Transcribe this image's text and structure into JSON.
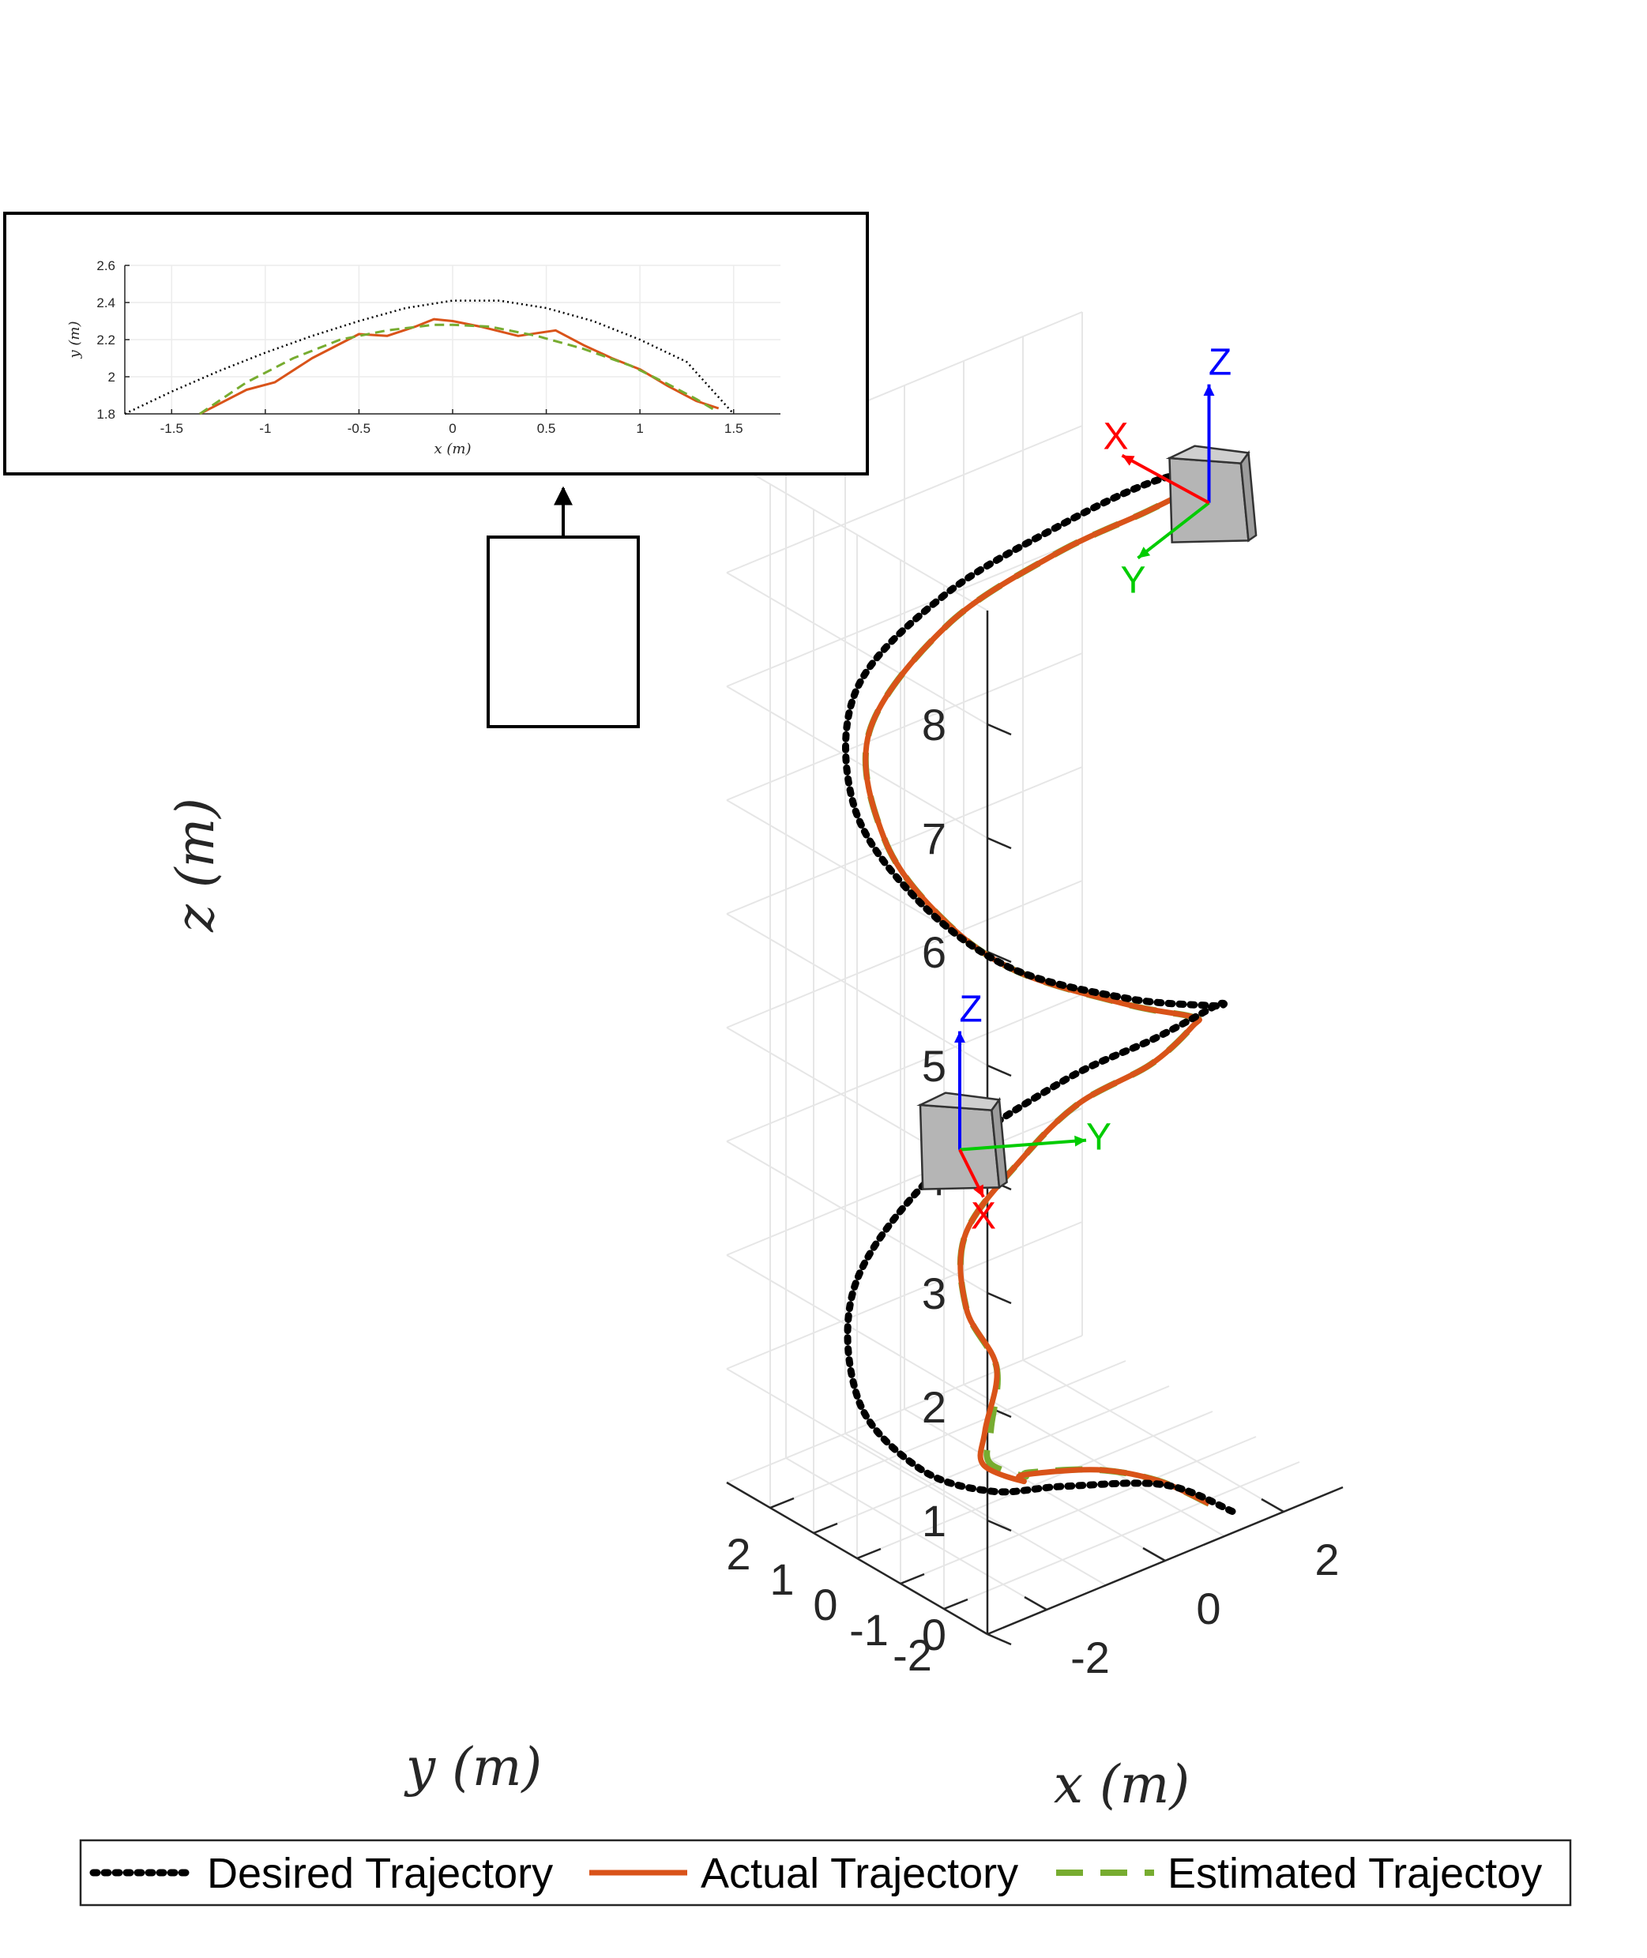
{
  "chart_data": [
    {
      "type": "line",
      "projection": "3d",
      "title": "",
      "xlabel": "x (m)",
      "ylabel": "y (m)",
      "zlabel": "z (m)",
      "xlim": [
        -3,
        3
      ],
      "ylim": [
        -3,
        3
      ],
      "zlim": [
        0,
        9
      ],
      "x_ticks": [
        "-2",
        "0",
        "2"
      ],
      "y_ticks": [
        "-2",
        "-1",
        "0",
        "1",
        "2"
      ],
      "z_ticks": [
        "0",
        "1",
        "2",
        "3",
        "4",
        "5",
        "6",
        "7",
        "8"
      ],
      "grid": true,
      "legend_position": "bottom",
      "series": [
        {
          "name": "Desired Trajectory",
          "style": "dotted",
          "color": "#000000",
          "points": [
            [
              1.5,
              -2.5,
              0.0
            ],
            [
              0.8,
              -1.9,
              0.25
            ],
            [
              -0.6,
              -1.5,
              0.45
            ],
            [
              -1.7,
              -1.3,
              0.6
            ],
            [
              -2.4,
              -0.6,
              0.8
            ],
            [
              -2.4,
              0.8,
              1.1
            ],
            [
              -1.4,
              2.2,
              1.6
            ],
            [
              0.3,
              2.5,
              2.2
            ],
            [
              1.7,
              1.7,
              2.8
            ],
            [
              2.4,
              0.5,
              3.3
            ],
            [
              2.4,
              -0.9,
              3.9
            ],
            [
              1.4,
              -2.2,
              4.4
            ],
            [
              -0.3,
              -2.5,
              4.9
            ],
            [
              -1.7,
              -1.7,
              5.3
            ],
            [
              -2.4,
              -0.5,
              5.8
            ],
            [
              -2.4,
              0.9,
              6.3
            ],
            [
              -1.4,
              2.2,
              6.8
            ],
            [
              0.3,
              2.5,
              7.2
            ],
            [
              1.7,
              1.7,
              7.7
            ],
            [
              2.4,
              0.5,
              8.2
            ],
            [
              2.4,
              -0.9,
              8.6
            ],
            [
              1.4,
              -2.2,
              9.0
            ]
          ]
        },
        {
          "name": "Actual Trajectory",
          "style": "solid",
          "color": "#d95319",
          "points": [
            [
              1.4,
              -2.1,
              0.0
            ],
            [
              0.9,
              -1.6,
              0.2
            ],
            [
              0.1,
              -1.3,
              0.4
            ],
            [
              -1.3,
              -1.5,
              0.7
            ],
            [
              -1.6,
              -1.9,
              0.8
            ],
            [
              -1.9,
              -1.4,
              0.9
            ],
            [
              -1.5,
              -0.9,
              1.0
            ],
            [
              -0.5,
              0.2,
              1.1
            ],
            [
              -0.2,
              1.3,
              1.3
            ],
            [
              0.3,
              2.0,
              1.7
            ],
            [
              1.2,
              1.9,
              2.2
            ],
            [
              1.7,
              1.3,
              2.7
            ],
            [
              2.1,
              0.2,
              3.2
            ],
            [
              2.0,
              -0.9,
              3.8
            ],
            [
              1.2,
              -2.0,
              4.3
            ],
            [
              -0.2,
              -2.4,
              4.8
            ],
            [
              -1.5,
              -1.6,
              5.2
            ],
            [
              -2.1,
              -0.7,
              5.6
            ],
            [
              -2.1,
              0.6,
              6.0
            ],
            [
              -1.4,
              1.9,
              6.5
            ],
            [
              0.2,
              2.3,
              7.0
            ],
            [
              1.5,
              1.6,
              7.5
            ],
            [
              2.2,
              0.4,
              8.0
            ],
            [
              2.2,
              -0.8,
              8.5
            ],
            [
              1.3,
              -2.0,
              9.0
            ]
          ]
        },
        {
          "name": "Estimated Trajectoy",
          "style": "dashed",
          "color": "#77ac30",
          "points": [
            [
              1.4,
              -2.1,
              0.0
            ],
            [
              0.9,
              -1.6,
              0.2
            ],
            [
              0.1,
              -1.3,
              0.4
            ],
            [
              -1.2,
              -1.5,
              0.7
            ],
            [
              -1.5,
              -1.8,
              0.8
            ],
            [
              -1.8,
              -1.4,
              0.9
            ],
            [
              -1.4,
              -0.9,
              1.0
            ],
            [
              -0.5,
              0.2,
              1.1
            ],
            [
              -0.2,
              1.3,
              1.3
            ],
            [
              0.3,
              2.0,
              1.7
            ],
            [
              1.2,
              1.9,
              2.2
            ],
            [
              1.7,
              1.3,
              2.7
            ],
            [
              2.1,
              0.2,
              3.2
            ],
            [
              2.0,
              -0.9,
              3.8
            ],
            [
              1.2,
              -2.0,
              4.3
            ],
            [
              -0.2,
              -2.4,
              4.8
            ],
            [
              -1.5,
              -1.6,
              5.2
            ],
            [
              -2.1,
              -0.7,
              5.6
            ],
            [
              -2.1,
              0.6,
              6.0
            ],
            [
              -1.4,
              1.9,
              6.5
            ],
            [
              0.2,
              2.3,
              7.0
            ],
            [
              1.5,
              1.6,
              7.5
            ],
            [
              2.2,
              0.4,
              8.0
            ],
            [
              2.2,
              -0.8,
              8.5
            ],
            [
              1.3,
              -2.0,
              9.0
            ]
          ]
        }
      ],
      "frames": [
        {
          "name": "start",
          "position": [
            -2.0,
            -1.0,
            3.6
          ],
          "labels": [
            "Z",
            "Y",
            "X"
          ]
        },
        {
          "name": "end",
          "position": [
            1.4,
            -2.1,
            8.8
          ],
          "labels": [
            "Z",
            "Y",
            "X"
          ]
        }
      ]
    },
    {
      "type": "line",
      "role": "inset",
      "xlabel": "x (m)",
      "ylabel": "y (m)",
      "xlim": [
        -1.75,
        1.75
      ],
      "ylim": [
        1.8,
        2.6
      ],
      "x_ticks": [
        "-1.5",
        "-1",
        "-0.5",
        "0",
        "0.5",
        "1",
        "1.5"
      ],
      "y_ticks": [
        "1.8",
        "2",
        "2.2",
        "2.4",
        "2.6"
      ],
      "series": [
        {
          "name": "Desired Trajectory",
          "x": [
            -1.75,
            -1.5,
            -1.25,
            -1.0,
            -0.75,
            -0.5,
            -0.25,
            0.0,
            0.25,
            0.5,
            0.75,
            1.0,
            1.25,
            1.5
          ],
          "y": [
            1.8,
            1.92,
            2.03,
            2.13,
            2.22,
            2.3,
            2.37,
            2.41,
            2.41,
            2.37,
            2.3,
            2.2,
            2.08,
            1.8
          ]
        },
        {
          "name": "Actual Trajectory",
          "x": [
            -1.35,
            -1.1,
            -0.95,
            -0.75,
            -0.5,
            -0.35,
            -0.2,
            -0.1,
            0.0,
            0.15,
            0.35,
            0.55,
            0.7,
            0.85,
            1.0,
            1.15,
            1.3,
            1.42
          ],
          "y": [
            1.8,
            1.93,
            1.97,
            2.1,
            2.23,
            2.22,
            2.27,
            2.31,
            2.3,
            2.27,
            2.22,
            2.25,
            2.17,
            2.1,
            2.04,
            1.95,
            1.87,
            1.83
          ]
        },
        {
          "name": "Estimated Trajectoy",
          "x": [
            -1.35,
            -1.1,
            -0.85,
            -0.6,
            -0.35,
            -0.1,
            0.0,
            0.2,
            0.45,
            0.7,
            0.95,
            1.15,
            1.3,
            1.4
          ],
          "y": [
            1.8,
            1.97,
            2.1,
            2.2,
            2.25,
            2.28,
            2.28,
            2.27,
            2.22,
            2.15,
            2.06,
            1.96,
            1.88,
            1.82
          ]
        }
      ]
    }
  ]
}
